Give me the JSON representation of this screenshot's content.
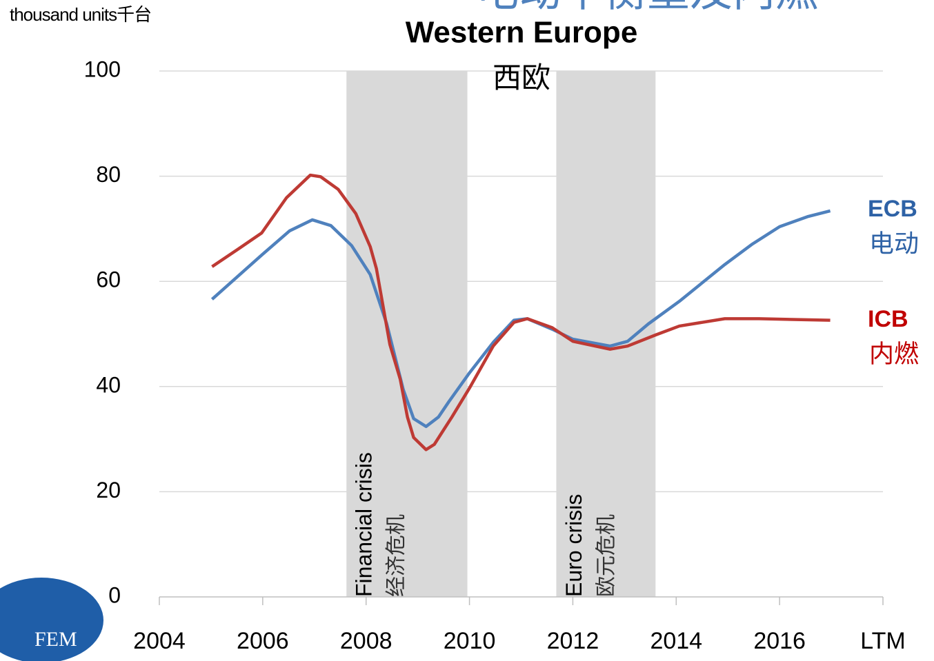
{
  "chart_data": {
    "type": "line",
    "header": "电动平衡重及内燃",
    "title": "Western Europe",
    "subtitle": "西欧",
    "y_label": "thousand units千台",
    "logo": "FEM",
    "xlim": [
      0,
      7
    ],
    "xticks": [
      {
        "value": 0,
        "label": "2004"
      },
      {
        "value": 1,
        "label": "2006"
      },
      {
        "value": 2,
        "label": "2008"
      },
      {
        "value": 3,
        "label": "2010"
      },
      {
        "value": 4,
        "label": "2012"
      },
      {
        "value": 5,
        "label": "2014"
      },
      {
        "value": 6,
        "label": "2016"
      },
      {
        "value": 7,
        "label": "LTM"
      }
    ],
    "ylim": [
      0,
      100
    ],
    "yticks": [
      0,
      20,
      40,
      60,
      80,
      100
    ],
    "grid": true,
    "bands": [
      {
        "x": [
          1.81,
          2.98
        ],
        "label": "Financial crisis",
        "label_zh": "经济危机"
      },
      {
        "x": [
          3.84,
          4.8
        ],
        "label": "Euro crisis",
        "label_zh": "欧元危机"
      }
    ],
    "series": [
      {
        "name": "ECB",
        "label_zh": "电动",
        "color": "#4f81bd",
        "x": [
          0.51,
          0.99,
          1.26,
          1.48,
          1.66,
          1.86,
          2.04,
          2.2,
          2.36,
          2.46,
          2.58,
          2.7,
          2.8,
          3.0,
          3.23,
          3.43,
          3.56,
          3.8,
          4.0,
          4.36,
          4.53,
          4.73,
          5.03,
          5.47,
          5.73,
          6.0,
          6.27,
          6.49
        ],
        "values": [
          56.6,
          65.0,
          69.6,
          71.7,
          70.6,
          66.8,
          61.3,
          51.9,
          39.4,
          33.9,
          32.4,
          34.2,
          37.1,
          42.6,
          48.4,
          52.6,
          52.9,
          50.9,
          49.0,
          47.7,
          48.6,
          51.9,
          56.2,
          63.2,
          67.0,
          70.4,
          72.3,
          73.4
        ]
      },
      {
        "name": "ICB",
        "label_zh": "内燃",
        "color": "#be3a34",
        "x": [
          0.51,
          0.76,
          0.99,
          1.23,
          1.46,
          1.56,
          1.73,
          1.9,
          2.04,
          2.1,
          2.23,
          2.33,
          2.4,
          2.46,
          2.58,
          2.66,
          2.83,
          3.0,
          3.23,
          3.43,
          3.56,
          3.8,
          4.0,
          4.36,
          4.53,
          4.8,
          5.03,
          5.47,
          5.8,
          6.49
        ],
        "values": [
          62.8,
          66.1,
          69.2,
          75.9,
          80.2,
          79.9,
          77.5,
          72.9,
          66.6,
          62.4,
          48.0,
          41.4,
          34.2,
          30.3,
          28.0,
          29.0,
          34.2,
          39.7,
          47.7,
          52.2,
          52.9,
          51.2,
          48.6,
          47.1,
          47.7,
          49.8,
          51.5,
          52.9,
          52.9,
          52.6
        ]
      }
    ]
  }
}
